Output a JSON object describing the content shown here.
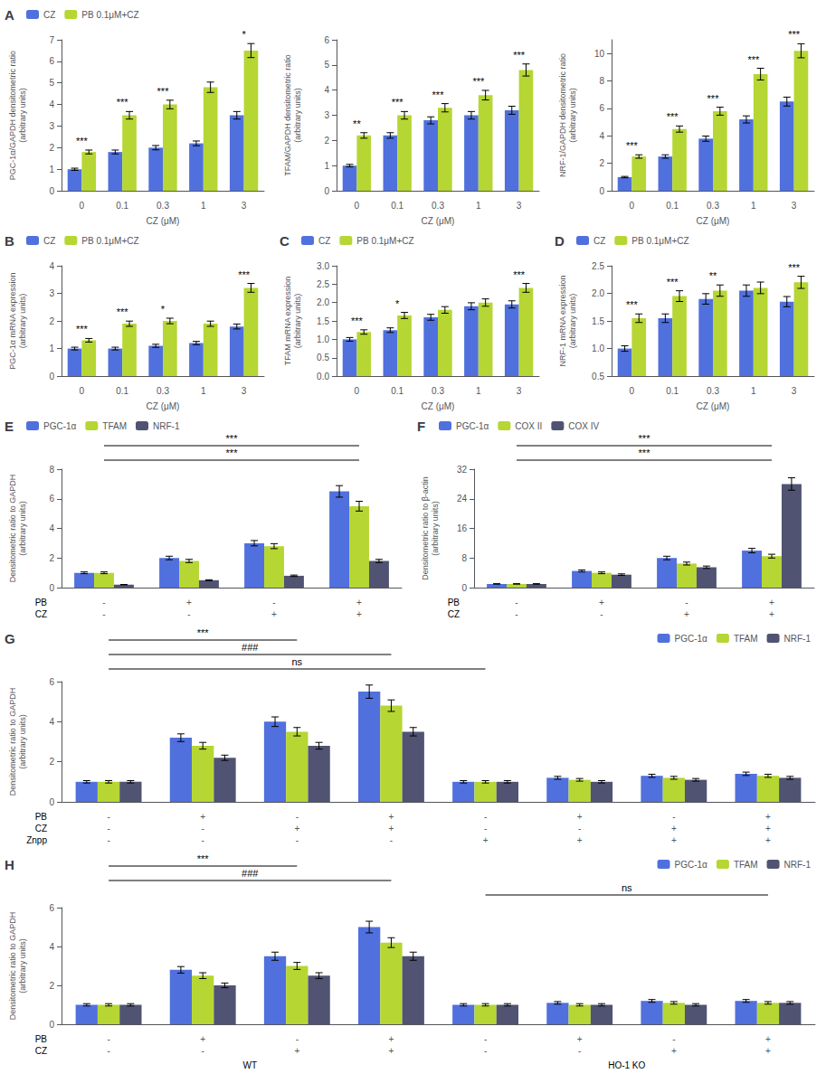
{
  "chart_data": [
    {
      "type": "bar",
      "title": "A",
      "xlabel": "CZ (μM)",
      "ylabel": "PGC-1α/GAPDH densitometric ratio\n(arbitrary units)",
      "categories": [
        "0",
        "0.1",
        "0.3",
        "1",
        "3"
      ],
      "series": [
        {
          "name": "CZ",
          "values": [
            1.0,
            1.8,
            2.0,
            2.2,
            3.5
          ],
          "errors": [
            0.05,
            0.09,
            0.1,
            0.11,
            0.175
          ]
        },
        {
          "name": "PB 0.1μM+CZ",
          "values": [
            1.8,
            3.5,
            4.0,
            4.8,
            6.5
          ],
          "errors": [
            0.09,
            0.175,
            0.2,
            0.24,
            0.325
          ]
        }
      ],
      "ylim": [
        0,
        7
      ],
      "yticks": [
        0,
        1,
        2,
        3,
        4,
        5,
        6,
        7
      ],
      "grid": false,
      "legend": "upper left",
      "annotations": [
        {
          "text": "***",
          "x": "0"
        },
        {
          "text": "***",
          "x": "0.1"
        },
        {
          "text": "***",
          "x": "0.3"
        },
        {
          "text": "*",
          "x": "3"
        }
      ]
    },
    {
      "type": "bar",
      "xlabel": "CZ (μM)",
      "ylabel": "TFAM/GAPDH densitometric ratio\n(arbitrary units)",
      "categories": [
        "0",
        "0.1",
        "0.3",
        "1",
        "3"
      ],
      "series": [
        {
          "name": "CZ",
          "values": [
            1.0,
            2.2,
            2.8,
            3.0,
            3.2
          ],
          "errors": [
            0.05,
            0.11,
            0.14,
            0.15,
            0.16
          ]
        },
        {
          "name": "PB 0.1μM+CZ",
          "values": [
            2.2,
            3.0,
            3.3,
            3.8,
            4.8
          ],
          "errors": [
            0.11,
            0.15,
            0.165,
            0.19,
            0.24
          ]
        }
      ],
      "ylim": [
        0,
        6
      ],
      "yticks": [
        0,
        1,
        2,
        3,
        4,
        5,
        6
      ],
      "grid": false,
      "annotations": [
        {
          "text": "**",
          "x": "0"
        },
        {
          "text": "***",
          "x": "0.1"
        },
        {
          "text": "***",
          "x": "0.3"
        },
        {
          "text": "***",
          "x": "1"
        },
        {
          "text": "***",
          "x": "3"
        }
      ]
    },
    {
      "type": "bar",
      "xlabel": "CZ (μM)",
      "ylabel": "NRF-1/GAPDH densitometric ratio\n(arbitrary units)",
      "categories": [
        "0",
        "0.1",
        "0.3",
        "1",
        "3"
      ],
      "series": [
        {
          "name": "CZ",
          "values": [
            1.0,
            2.5,
            3.8,
            5.2,
            6.5
          ],
          "errors": [
            0.05,
            0.125,
            0.19,
            0.26,
            0.325
          ]
        },
        {
          "name": "PB 0.1μM+CZ",
          "values": [
            2.5,
            4.5,
            5.8,
            8.5,
            10.2
          ],
          "errors": [
            0.125,
            0.225,
            0.29,
            0.425,
            0.51
          ]
        }
      ],
      "ylim": [
        0,
        11
      ],
      "yticks": [
        0,
        2,
        4,
        6,
        8,
        10
      ],
      "grid": false,
      "annotations": [
        {
          "text": "***",
          "x": "0"
        },
        {
          "text": "***",
          "x": "0.1"
        },
        {
          "text": "***",
          "x": "0.3"
        },
        {
          "text": "***",
          "x": "1"
        },
        {
          "text": "***",
          "x": "3"
        }
      ]
    },
    {
      "type": "bar",
      "title": "B",
      "xlabel": "CZ (μM)",
      "ylabel": "PGC-1α mRNA expression\n(arbitrary units)",
      "categories": [
        "0",
        "0.1",
        "0.3",
        "1",
        "3"
      ],
      "series": [
        {
          "name": "CZ",
          "values": [
            1.0,
            1.0,
            1.1,
            1.2,
            1.8
          ],
          "errors": [
            0.05,
            0.05,
            0.055,
            0.06,
            0.09
          ]
        },
        {
          "name": "PB 0.1μM+CZ",
          "values": [
            1.3,
            1.9,
            2.0,
            1.9,
            3.2
          ],
          "errors": [
            0.065,
            0.095,
            0.1,
            0.095,
            0.16
          ]
        }
      ],
      "ylim": [
        0,
        4
      ],
      "yticks": [
        0,
        1,
        2,
        3,
        4
      ],
      "grid": false,
      "legend": "upper left",
      "annotations": [
        {
          "text": "***",
          "x": "0"
        },
        {
          "text": "***",
          "x": "0.1"
        },
        {
          "text": "*",
          "x": "0.3"
        },
        {
          "text": "***",
          "x": "3"
        }
      ]
    },
    {
      "type": "bar",
      "title": "C",
      "xlabel": "CZ (μM)",
      "ylabel": "TFAM mRNA expression\n(arbitrary units)",
      "categories": [
        "0",
        "0.1",
        "0.3",
        "1",
        "3"
      ],
      "series": [
        {
          "name": "CZ",
          "values": [
            1.0,
            1.25,
            1.6,
            1.9,
            1.95
          ],
          "errors": [
            0.05,
            0.0625,
            0.08,
            0.095,
            0.0975
          ]
        },
        {
          "name": "PB 0.1μM+CZ",
          "values": [
            1.2,
            1.65,
            1.8,
            2.0,
            2.4
          ],
          "errors": [
            0.06,
            0.0825,
            0.09,
            0.1,
            0.12
          ]
        }
      ],
      "ylim": [
        0.0,
        3.0
      ],
      "yticks": [
        {
          "value": 0.0,
          "label": "0.0"
        },
        0.5,
        {
          "value": 1.0,
          "label": "1.0"
        },
        1.5,
        {
          "value": 2.0,
          "label": "2.0"
        },
        2.5,
        {
          "value": 3.0,
          "label": "3.0"
        }
      ],
      "grid": false,
      "legend": "upper left",
      "annotations": [
        {
          "text": "***",
          "x": "0"
        },
        {
          "text": "*",
          "x": "0.1"
        },
        {
          "text": "***",
          "x": "3"
        }
      ]
    },
    {
      "type": "bar",
      "title": "D",
      "xlabel": "CZ (μM)",
      "ylabel": "NRF-1 mRNA expression\n(arbitrary units)",
      "categories": [
        "0",
        "0.1",
        "0.3",
        "1",
        "3"
      ],
      "series": [
        {
          "name": "CZ",
          "values": [
            1.0,
            1.55,
            1.9,
            2.05,
            1.85
          ],
          "errors": [
            0.05,
            0.0775,
            0.095,
            0.1025,
            0.0925
          ]
        },
        {
          "name": "PB 0.1μM+CZ",
          "values": [
            1.55,
            1.95,
            2.05,
            2.1,
            2.2
          ],
          "errors": [
            0.0775,
            0.0975,
            0.1025,
            0.105,
            0.11
          ]
        }
      ],
      "ylim": [
        0.5,
        2.5
      ],
      "yticks": [
        0.5,
        {
          "value": 1.0,
          "label": "1.0"
        },
        1.5,
        {
          "value": 2.0,
          "label": "2.0"
        },
        2.5
      ],
      "grid": false,
      "legend": "upper left",
      "annotations": [
        {
          "text": "***",
          "x": "0"
        },
        {
          "text": "***",
          "x": "0.1"
        },
        {
          "text": "**",
          "x": "0.3"
        },
        {
          "text": "***",
          "x": "3"
        }
      ]
    },
    {
      "type": "bar",
      "title": "E",
      "ylabel": "Densitometric ratio to GAPDH\n(arbitrary units)",
      "categories": [
        null,
        null,
        null,
        null
      ],
      "x_rows": [
        {
          "label": "PB",
          "labels": [
            "-",
            "+",
            "-",
            "+"
          ]
        },
        {
          "label": "CZ",
          "labels": [
            "-",
            "-",
            "+",
            "+"
          ]
        }
      ],
      "series": [
        {
          "name": "PGC-1α",
          "values": [
            1.0,
            2.0,
            3.0,
            6.5
          ],
          "errors": [
            0.06,
            0.12,
            0.18,
            0.39
          ]
        },
        {
          "name": "TFAM",
          "values": [
            1.0,
            1.8,
            2.8,
            5.5
          ],
          "errors": [
            0.06,
            0.108,
            0.168,
            0.33
          ]
        },
        {
          "name": "NRF-1",
          "values": [
            0.2,
            0.5,
            0.8,
            1.8
          ],
          "errors": [
            0.012,
            0.03,
            0.048,
            0.108
          ]
        }
      ],
      "ylim": [
        0,
        8
      ],
      "yticks": [
        0,
        2,
        4,
        6,
        8
      ],
      "grid": false,
      "legend": "upper left",
      "brackets": [
        {
          "text": "***",
          "from": 0,
          "to": 3
        },
        {
          "text": "***",
          "from": 0,
          "to": 3
        }
      ]
    },
    {
      "type": "bar",
      "title": "F",
      "ylabel": "Densitometric ratio to β-actin\n(arbitrary units)",
      "categories": [
        null,
        null,
        null,
        null
      ],
      "x_rows": [
        {
          "label": "PB",
          "labels": [
            "-",
            "+",
            "-",
            "+"
          ]
        },
        {
          "label": "CZ",
          "labels": [
            "-",
            "-",
            "+",
            "+"
          ]
        }
      ],
      "series": [
        {
          "name": "PGC-1α",
          "values": [
            1.0,
            4.5,
            8.0,
            10.0
          ],
          "errors": [
            0.06,
            0.27,
            0.48,
            0.6
          ]
        },
        {
          "name": "COX II",
          "values": [
            1.0,
            4.0,
            6.5,
            8.5
          ],
          "errors": [
            0.06,
            0.24,
            0.39,
            0.51
          ]
        },
        {
          "name": "COX IV",
          "values": [
            1.0,
            3.5,
            5.5,
            28.0
          ],
          "errors": [
            0.06,
            0.21,
            0.33,
            1.68
          ]
        }
      ],
      "ylim": [
        0,
        32
      ],
      "yticks": [
        0,
        8,
        16,
        24,
        32
      ],
      "grid": false,
      "legend": "upper left",
      "brackets": [
        {
          "text": "***",
          "from": 0,
          "to": 3
        },
        {
          "text": "***",
          "from": 0,
          "to": 3
        }
      ]
    },
    {
      "type": "bar",
      "title": "G",
      "ylabel": "Densitometric ratio to GAPDH\n(arbitrary units)",
      "categories": [
        null,
        null,
        null,
        null,
        null,
        null,
        null,
        null
      ],
      "x_rows": [
        {
          "label": "PB",
          "labels": [
            "-",
            "+",
            "-",
            "+",
            "-",
            "+",
            "-",
            "+"
          ]
        },
        {
          "label": "CZ",
          "labels": [
            "-",
            "-",
            "+",
            "+",
            "-",
            "-",
            "+",
            "+"
          ]
        },
        {
          "label": "Znpp",
          "labels": [
            "-",
            "-",
            "-",
            "-",
            "+",
            "+",
            "+",
            "+"
          ]
        }
      ],
      "series": [
        {
          "name": "PGC-1α",
          "values": [
            1.0,
            3.2,
            4.0,
            5.5,
            1.0,
            1.2,
            1.3,
            1.4
          ],
          "errors": [
            0.06,
            0.192,
            0.24,
            0.33,
            0.06,
            0.072,
            0.078,
            0.084
          ]
        },
        {
          "name": "TFAM",
          "values": [
            1.0,
            2.8,
            3.5,
            4.8,
            1.0,
            1.1,
            1.2,
            1.3
          ],
          "errors": [
            0.06,
            0.168,
            0.21,
            0.288,
            0.06,
            0.066,
            0.072,
            0.078
          ]
        },
        {
          "name": "NRF-1",
          "values": [
            1.0,
            2.2,
            2.8,
            3.5,
            1.0,
            1.0,
            1.1,
            1.2
          ],
          "errors": [
            0.06,
            0.132,
            0.168,
            0.21,
            0.06,
            0.06,
            0.066,
            0.072
          ]
        }
      ],
      "ylim": [
        0,
        6
      ],
      "yticks": [
        0,
        2,
        4,
        6
      ],
      "grid": false,
      "legend": "upper right",
      "brackets": [
        {
          "text": "***",
          "from": 0,
          "to": 2
        },
        {
          "text": "###",
          "from": 0,
          "to": 3
        },
        {
          "text": "ns",
          "from": 0,
          "to": 4
        }
      ]
    },
    {
      "type": "bar",
      "title": "H",
      "ylabel": "Densitometric ratio to GAPDH\n(arbitrary units)",
      "categories": [
        null,
        null,
        null,
        null,
        null,
        null,
        null,
        null
      ],
      "x_rows": [
        {
          "label": "PB",
          "labels": [
            "-",
            "+",
            "-",
            "+",
            "-",
            "+",
            "-",
            "+"
          ]
        },
        {
          "label": "CZ",
          "labels": [
            "-",
            "-",
            "+",
            "+",
            "-",
            "-",
            "+",
            "+"
          ]
        }
      ],
      "x_groups": [
        {
          "label": "WT",
          "count": 4
        },
        {
          "label": "HO-1 KO",
          "count": 4
        }
      ],
      "series": [
        {
          "name": "PGC-1α",
          "values": [
            1.0,
            2.8,
            3.5,
            5.0,
            1.0,
            1.1,
            1.2,
            1.2
          ],
          "errors": [
            0.06,
            0.168,
            0.21,
            0.3,
            0.06,
            0.066,
            0.072,
            0.072
          ]
        },
        {
          "name": "TFAM",
          "values": [
            1.0,
            2.5,
            3.0,
            4.2,
            1.0,
            1.0,
            1.1,
            1.1
          ],
          "errors": [
            0.06,
            0.15,
            0.18,
            0.252,
            0.06,
            0.06,
            0.066,
            0.066
          ]
        },
        {
          "name": "NRF-1",
          "values": [
            1.0,
            2.0,
            2.5,
            3.5,
            1.0,
            1.0,
            1.0,
            1.1
          ],
          "errors": [
            0.06,
            0.12,
            0.15,
            0.21,
            0.06,
            0.06,
            0.06,
            0.066
          ]
        }
      ],
      "ylim": [
        0,
        6
      ],
      "yticks": [
        0,
        2,
        4,
        6
      ],
      "grid": false,
      "legend": "upper right",
      "brackets": [
        {
          "text": "***",
          "from": 0,
          "to": 2
        },
        {
          "text": "###",
          "from": 0,
          "to": 3
        },
        {
          "text": "ns",
          "from": 4,
          "to": 7
        }
      ]
    }
  ]
}
